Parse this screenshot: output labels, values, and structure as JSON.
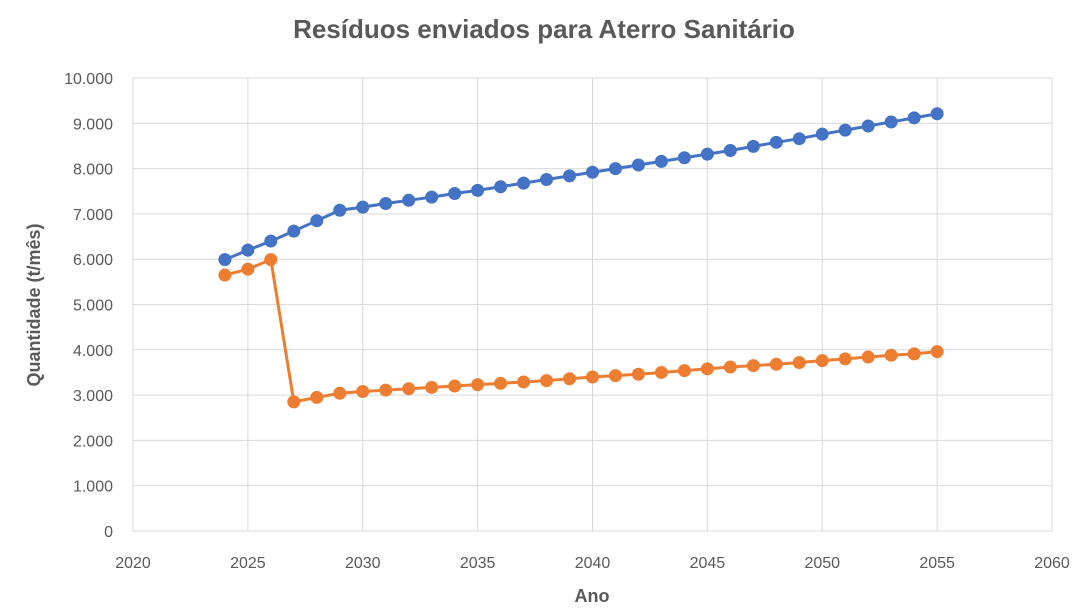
{
  "chart_data": {
    "type": "line",
    "title": "Resíduos enviados para Aterro Sanitário",
    "xlabel": "Ano",
    "ylabel": "Quantidade (t/mês)",
    "xlim": [
      2020,
      2060
    ],
    "ylim": [
      0,
      10000
    ],
    "x_ticks": [
      2020,
      2025,
      2030,
      2035,
      2040,
      2045,
      2050,
      2055,
      2060
    ],
    "x_tick_labels": [
      "2020",
      "2025",
      "2030",
      "2035",
      "2040",
      "2045",
      "2050",
      "2055",
      "2060"
    ],
    "y_ticks": [
      0,
      1000,
      2000,
      3000,
      4000,
      5000,
      6000,
      7000,
      8000,
      9000,
      10000
    ],
    "y_tick_labels": [
      "0",
      "1.000",
      "2.000",
      "3.000",
      "4.000",
      "5.000",
      "6.000",
      "7.000",
      "8.000",
      "9.000",
      "10.000"
    ],
    "grid": true,
    "legend": "none",
    "x": [
      2024,
      2025,
      2026,
      2027,
      2028,
      2029,
      2030,
      2031,
      2032,
      2033,
      2034,
      2035,
      2036,
      2037,
      2038,
      2039,
      2040,
      2041,
      2042,
      2043,
      2044,
      2045,
      2046,
      2047,
      2048,
      2049,
      2050,
      2051,
      2052,
      2053,
      2054,
      2055
    ],
    "series": [
      {
        "color": "#4472c4",
        "values": [
          5990,
          6200,
          6400,
          6620,
          6850,
          7080,
          7150,
          7230,
          7300,
          7370,
          7450,
          7520,
          7600,
          7680,
          7760,
          7840,
          7920,
          8000,
          8080,
          8160,
          8240,
          8320,
          8400,
          8490,
          8580,
          8660,
          8760,
          8850,
          8940,
          9030,
          9120,
          9210
        ]
      },
      {
        "color": "#ed7d31",
        "values": [
          5650,
          5780,
          5990,
          2850,
          2950,
          3040,
          3080,
          3110,
          3140,
          3170,
          3200,
          3230,
          3260,
          3290,
          3320,
          3360,
          3400,
          3430,
          3460,
          3500,
          3540,
          3580,
          3620,
          3650,
          3680,
          3720,
          3760,
          3800,
          3840,
          3880,
          3910,
          3960
        ]
      }
    ]
  }
}
